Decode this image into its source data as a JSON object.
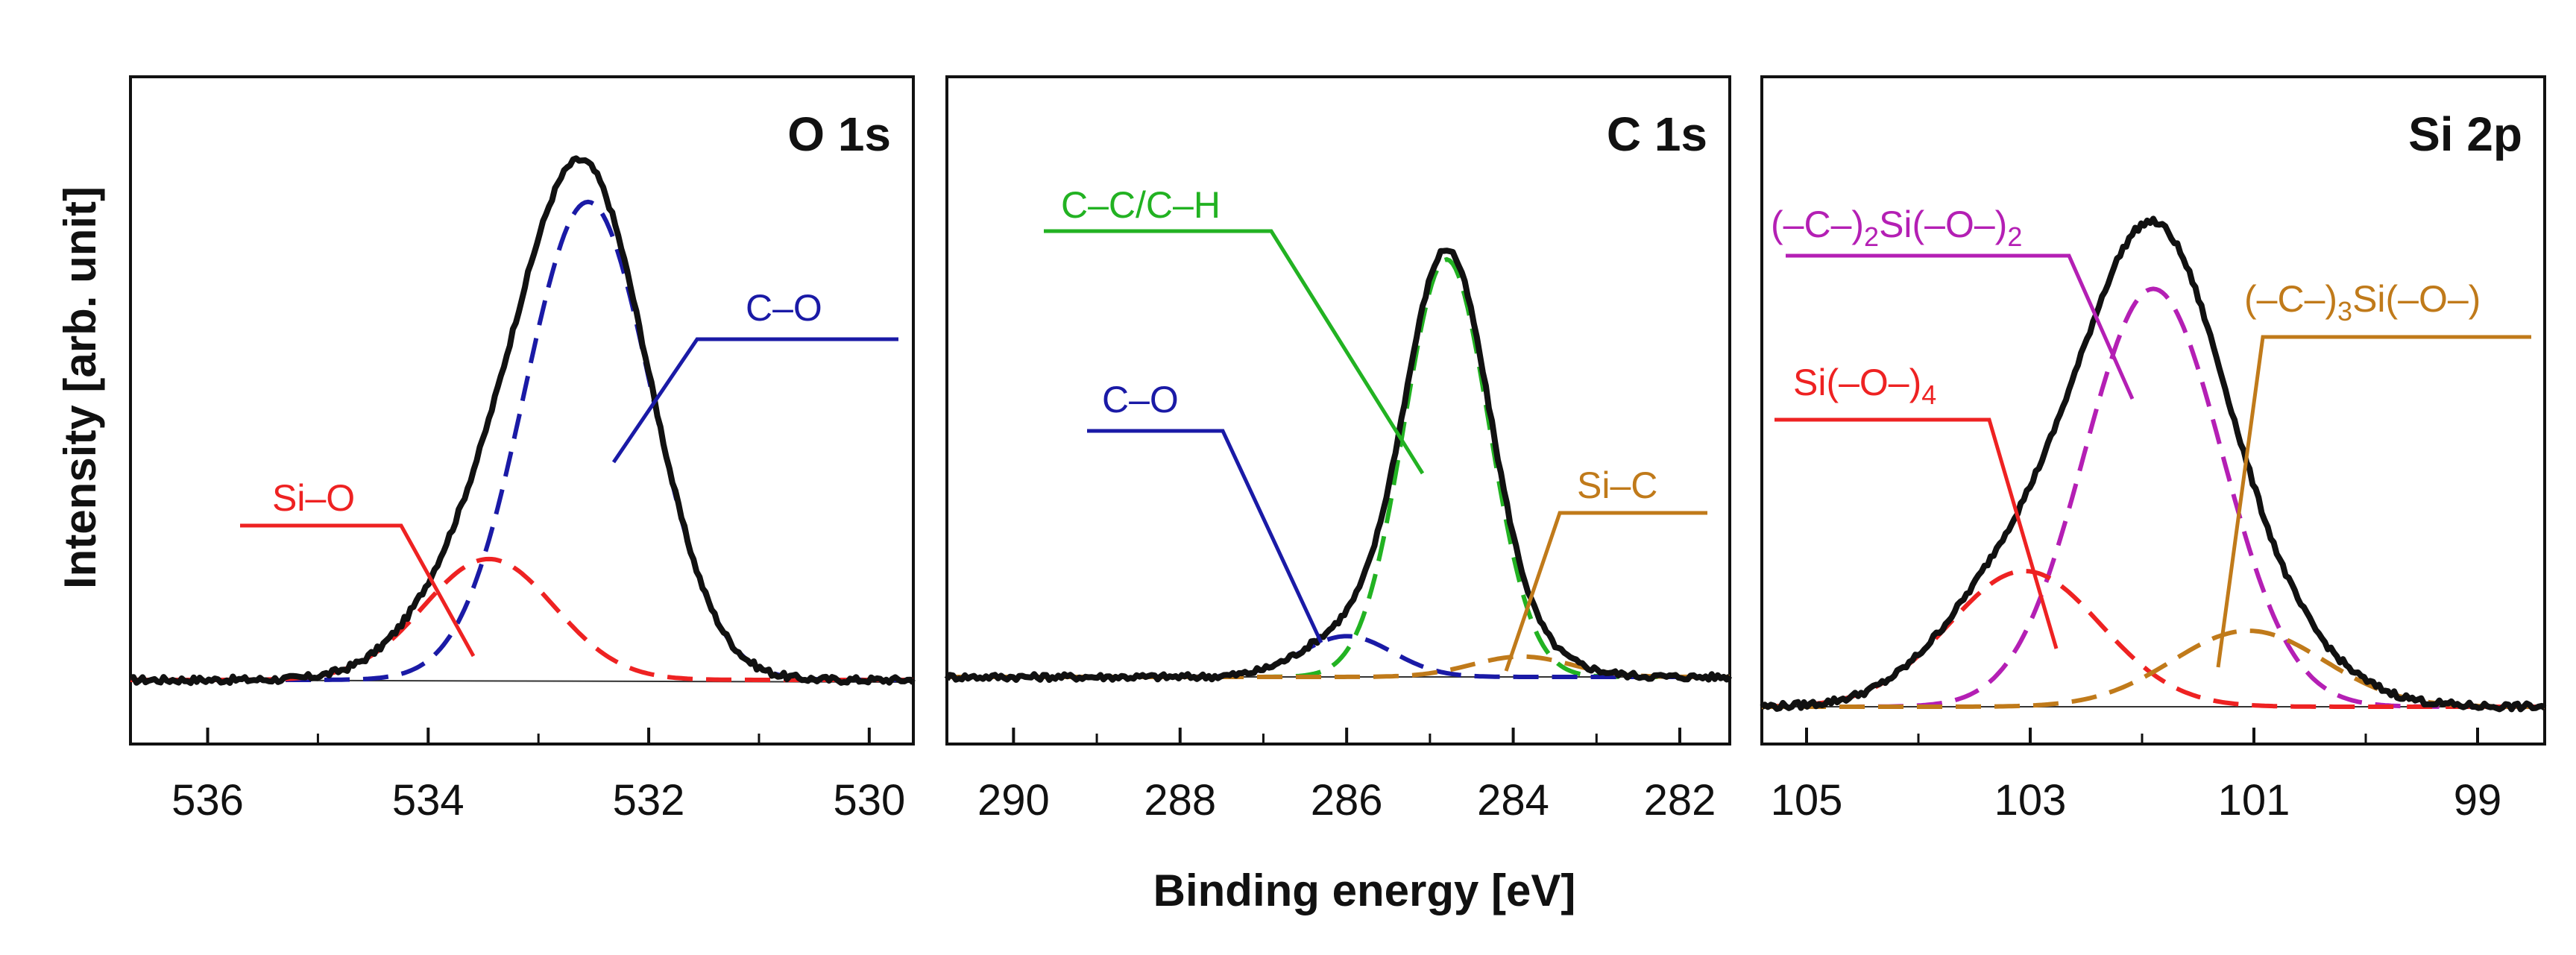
{
  "chart_data": [
    {
      "type": "line",
      "title": "O 1s",
      "xlabel": "Binding energy [eV]",
      "ylabel": "Intensity [arb. unit]",
      "xlim": [
        536.7,
        529.6
      ],
      "ylim": [
        0,
        1
      ],
      "xticks": [
        536,
        534,
        532,
        530
      ],
      "tick_labels": [
        "536",
        "534",
        "532",
        "530"
      ],
      "envelope": {
        "name": "envelope",
        "color": "#111111"
      },
      "components": [
        {
          "name": "C–O",
          "center": 532.55,
          "fwhm": 1.35,
          "amplitude": 0.87,
          "color": "#1a1aa6"
        },
        {
          "name": "Si–O",
          "center": 533.45,
          "fwhm": 1.4,
          "amplitude": 0.22,
          "color": "#ee2222"
        }
      ],
      "annotations": [
        {
          "label": "C–O",
          "color": "#1a1aa6"
        },
        {
          "label": "Si–O",
          "color": "#ee2222"
        }
      ]
    },
    {
      "type": "line",
      "title": "C 1s",
      "xlabel": "Binding energy [eV]",
      "ylabel": "Intensity [arb. unit]",
      "xlim": [
        290.8,
        281.4
      ],
      "ylim": [
        0,
        1
      ],
      "xticks": [
        290,
        288,
        286,
        284,
        282
      ],
      "tick_labels": [
        "290",
        "288",
        "286",
        "284",
        "282"
      ],
      "envelope": {
        "name": "envelope",
        "color": "#111111"
      },
      "components": [
        {
          "name": "C–C/C–H",
          "center": 284.8,
          "fwhm": 1.2,
          "amplitude": 0.82,
          "color": "#22b222"
        },
        {
          "name": "C–O",
          "center": 286.0,
          "fwhm": 1.3,
          "amplitude": 0.08,
          "color": "#1a1aa6"
        },
        {
          "name": "Si–C",
          "center": 283.9,
          "fwhm": 1.4,
          "amplitude": 0.04,
          "color": "#c07a1a"
        }
      ],
      "annotations": [
        {
          "label": "C–C/C–H",
          "color": "#22b222"
        },
        {
          "label": "C–O",
          "color": "#1a1aa6"
        },
        {
          "label": "Si–C",
          "color": "#c07a1a"
        }
      ]
    },
    {
      "type": "line",
      "title": "Si 2p",
      "xlabel": "Binding energy [eV]",
      "ylabel": "Intensity [arb. unit]",
      "xlim": [
        105.4,
        98.4
      ],
      "ylim": [
        0,
        1
      ],
      "xticks": [
        105,
        103,
        101,
        99
      ],
      "tick_labels": [
        "105",
        "103",
        "101",
        "99"
      ],
      "envelope": {
        "name": "envelope",
        "color": "#111111"
      },
      "components": [
        {
          "name": "(–C–)2Si(–O–)2",
          "center": 101.9,
          "fwhm": 1.45,
          "amplitude": 0.77,
          "color": "#b41fb4"
        },
        {
          "name": "Si(–O–)4",
          "center": 103.05,
          "fwhm": 1.6,
          "amplitude": 0.25,
          "color": "#ee2222"
        },
        {
          "name": "(–C–)3Si(–O–)",
          "center": 101.05,
          "fwhm": 1.6,
          "amplitude": 0.14,
          "color": "#c07a1a"
        }
      ],
      "annotations": [
        {
          "label": "(–C–)",
          "sub": "2",
          "label2": "Si(–O–)",
          "sub2": "2",
          "color": "#b41fb4"
        },
        {
          "label": "(–C–)",
          "sub": "3",
          "label2": "Si(–O–)",
          "sub2": "",
          "color": "#c07a1a"
        },
        {
          "label": "Si(–O–)",
          "sub": "4",
          "label2": "",
          "sub2": "",
          "color": "#ee2222"
        }
      ]
    }
  ],
  "axes": {
    "xlabel": "Binding energy [eV]",
    "ylabel": "Intensity [arb. unit]"
  }
}
